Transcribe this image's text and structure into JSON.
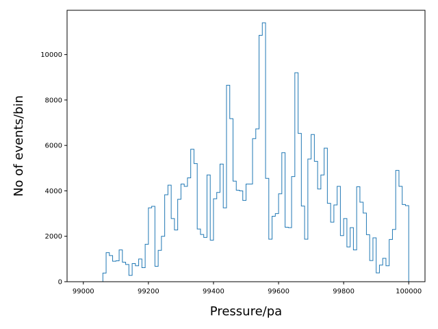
{
  "chart_data": {
    "type": "histogram",
    "title": "",
    "xlabel": "Pressure/pa",
    "ylabel": "No of events/bin",
    "xlim": [
      98950,
      100050
    ],
    "ylim": [
      0,
      11950
    ],
    "xticks": [
      99000,
      99200,
      99400,
      99600,
      99800,
      100000
    ],
    "yticks": [
      0,
      2000,
      4000,
      6000,
      8000,
      10000
    ],
    "color": "#1f77b4",
    "grid": false,
    "bin_edges_start": 99000,
    "bin_width": 10,
    "values": [
      0,
      0,
      0,
      0,
      0,
      0,
      380,
      1280,
      1150,
      900,
      920,
      1400,
      860,
      760,
      280,
      800,
      700,
      1000,
      620,
      1650,
      3250,
      3320,
      680,
      1380,
      2000,
      3830,
      4250,
      2780,
      2280,
      3630,
      4300,
      4200,
      4570,
      5830,
      5200,
      2320,
      2080,
      1950,
      4700,
      1830,
      3650,
      3930,
      5180,
      3250,
      8650,
      7180,
      4430,
      4030,
      4000,
      3580,
      4300,
      4300,
      6300,
      6730,
      10850,
      11400,
      4550,
      1870,
      2880,
      3000,
      3870,
      5680,
      2400,
      2380,
      4630,
      9200,
      6530,
      3330,
      1870,
      5400,
      6480,
      5300,
      4080,
      4700,
      5880,
      3450,
      2620,
      3380,
      4200,
      2030,
      2780,
      1530,
      2380,
      1400,
      4180,
      3500,
      3020,
      2070,
      930,
      1930,
      390,
      730,
      1030,
      700,
      1860,
      2300,
      4900,
      4200,
      3400,
      3350
    ]
  }
}
